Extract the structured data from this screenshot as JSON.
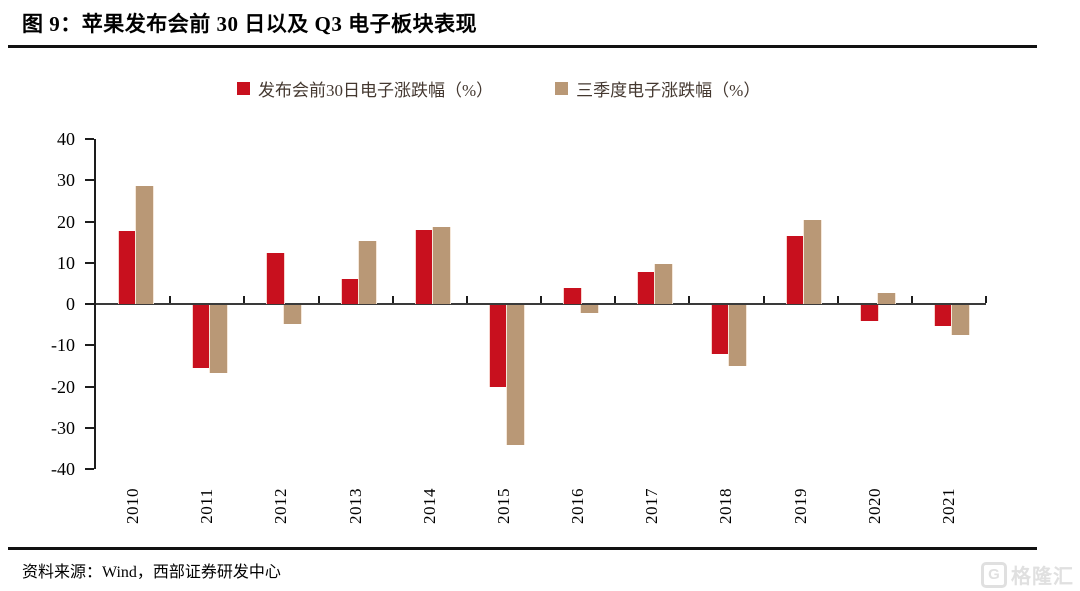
{
  "title": "图 9：苹果发布会前 30 日以及 Q3 电子板块表现",
  "source": "资料来源：Wind，西部证券研发中心",
  "watermark": {
    "icon_letter": "G",
    "text": "格隆汇"
  },
  "colors": {
    "series1": "#C8101E",
    "series2": "#B99876",
    "axis": "#1d1d1d",
    "legend_text": "#443830"
  },
  "chart_data": {
    "type": "bar",
    "title": "图 9：苹果发布会前 30 日以及 Q3 电子板块表现",
    "categories": [
      "2010",
      "2011",
      "2012",
      "2013",
      "2014",
      "2015",
      "2016",
      "2017",
      "2018",
      "2019",
      "2020",
      "2021"
    ],
    "series": [
      {
        "name": "发布会前30日电子涨跌幅（%）",
        "color": "#C8101E",
        "values": [
          17.6,
          -15.2,
          12.4,
          6.0,
          18.0,
          -19.8,
          3.8,
          7.8,
          -11.8,
          16.5,
          -3.8,
          -5.0
        ]
      },
      {
        "name": "三季度电子涨跌幅（%）",
        "color": "#B99876",
        "values": [
          28.7,
          -16.5,
          -4.5,
          15.2,
          18.7,
          -34.0,
          -2.0,
          9.8,
          -14.7,
          20.3,
          2.6,
          -7.3
        ]
      }
    ],
    "xlabel": "",
    "ylabel": "",
    "ylim": [
      -40,
      40
    ],
    "yticks": [
      40,
      30,
      20,
      10,
      0,
      -10,
      -20,
      -30,
      -40
    ],
    "grid": false,
    "legend_position": "top"
  }
}
